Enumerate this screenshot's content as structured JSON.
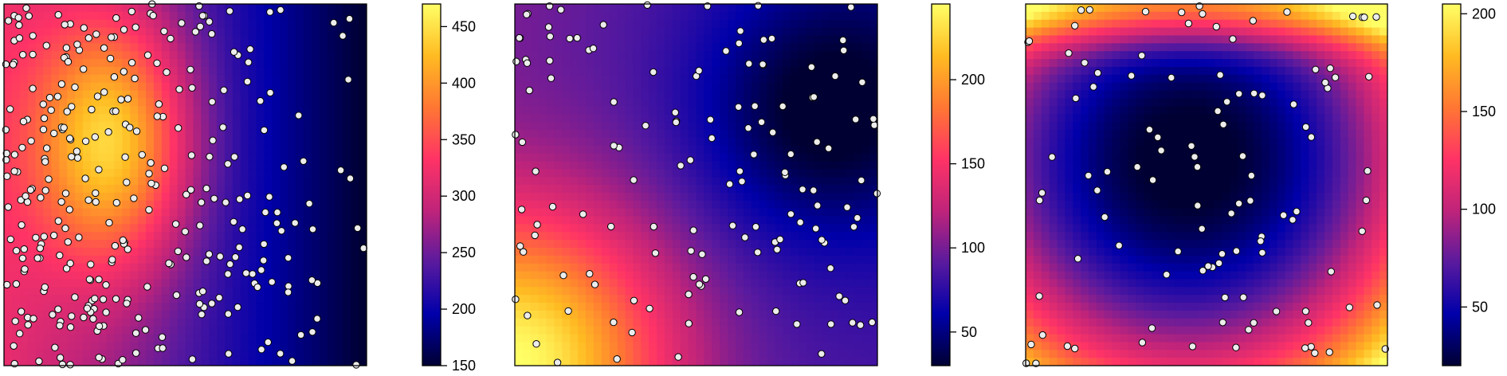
{
  "chart_data": [
    {
      "type": "heatmap",
      "title": "",
      "xlabel": "",
      "ylabel": "",
      "axes_shown": false,
      "colorscale": [
        "#000033",
        "#0000aa",
        "#5a1a9e",
        "#c0247a",
        "#ff3366",
        "#ff7733",
        "#ffbb22",
        "#ffff66"
      ],
      "colorbar": {
        "range": [
          150,
          470
        ],
        "ticks": [
          150,
          200,
          250,
          300,
          350,
          400,
          450
        ],
        "tick_labels": [
          "150",
          "200",
          "250",
          "300",
          "350",
          "400",
          "450"
        ]
      },
      "field": {
        "form": "horizontal gradient with central hotspot",
        "hotspot_xy": [
          0.3,
          0.62
        ],
        "value_range": [
          150,
          470
        ]
      },
      "points": {
        "count": 320,
        "style": "white circle, black outline",
        "distribution": "dense on left half, sparse on right half"
      }
    },
    {
      "type": "heatmap",
      "title": "",
      "xlabel": "",
      "ylabel": "",
      "axes_shown": false,
      "colorscale": [
        "#000033",
        "#0000aa",
        "#5a1a9e",
        "#c0247a",
        "#ff3366",
        "#ff7733",
        "#ffbb22",
        "#ffff66"
      ],
      "colorbar": {
        "range": [
          30,
          245
        ],
        "ticks": [
          50,
          100,
          150,
          200
        ],
        "tick_labels": [
          "50",
          "100",
          "150",
          "200"
        ]
      },
      "field": {
        "form": "bright bottom-left corner, dark top-right corner",
        "value_range": [
          30,
          245
        ]
      },
      "points": {
        "count": 140,
        "style": "white circle, black outline",
        "distribution": "uniform random"
      }
    },
    {
      "type": "heatmap",
      "title": "",
      "xlabel": "",
      "ylabel": "",
      "axes_shown": false,
      "colorscale": [
        "#000033",
        "#0000aa",
        "#5a1a9e",
        "#c0247a",
        "#ff3366",
        "#ff7733",
        "#ffbb22",
        "#ffff66"
      ],
      "colorbar": {
        "range": [
          20,
          205
        ],
        "ticks": [
          50,
          100,
          150,
          200
        ],
        "tick_labels": [
          "50",
          "100",
          "150",
          "200"
        ]
      },
      "field": {
        "form": "dark bowl centred in panel, bright edges",
        "center_xy": [
          0.45,
          0.43
        ],
        "value_range": [
          20,
          205
        ]
      },
      "points": {
        "count": 110,
        "style": "white circle, black outline",
        "distribution": "uniform random"
      }
    }
  ]
}
